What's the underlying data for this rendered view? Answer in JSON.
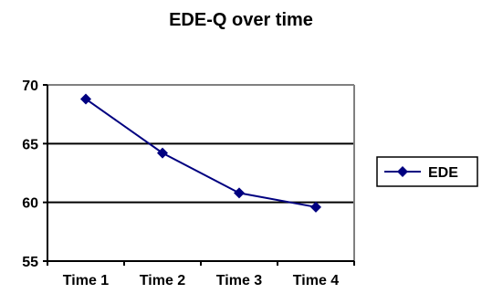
{
  "chart_data": {
    "type": "line",
    "title": "EDE-Q over time",
    "xlabel": "",
    "ylabel": "",
    "categories": [
      "Time 1",
      "Time 2",
      "Time 3",
      "Time 4"
    ],
    "series": [
      {
        "name": "EDE",
        "values": [
          68.8,
          64.2,
          60.8,
          59.6
        ]
      }
    ],
    "ylim": [
      55,
      70
    ],
    "yticks": [
      55,
      60,
      65,
      70
    ],
    "grid": true,
    "legend_position": "right",
    "colors": {
      "series": "#000080",
      "gridline": "#000000",
      "plot_border": "#808080",
      "background": "#ffffff"
    }
  }
}
